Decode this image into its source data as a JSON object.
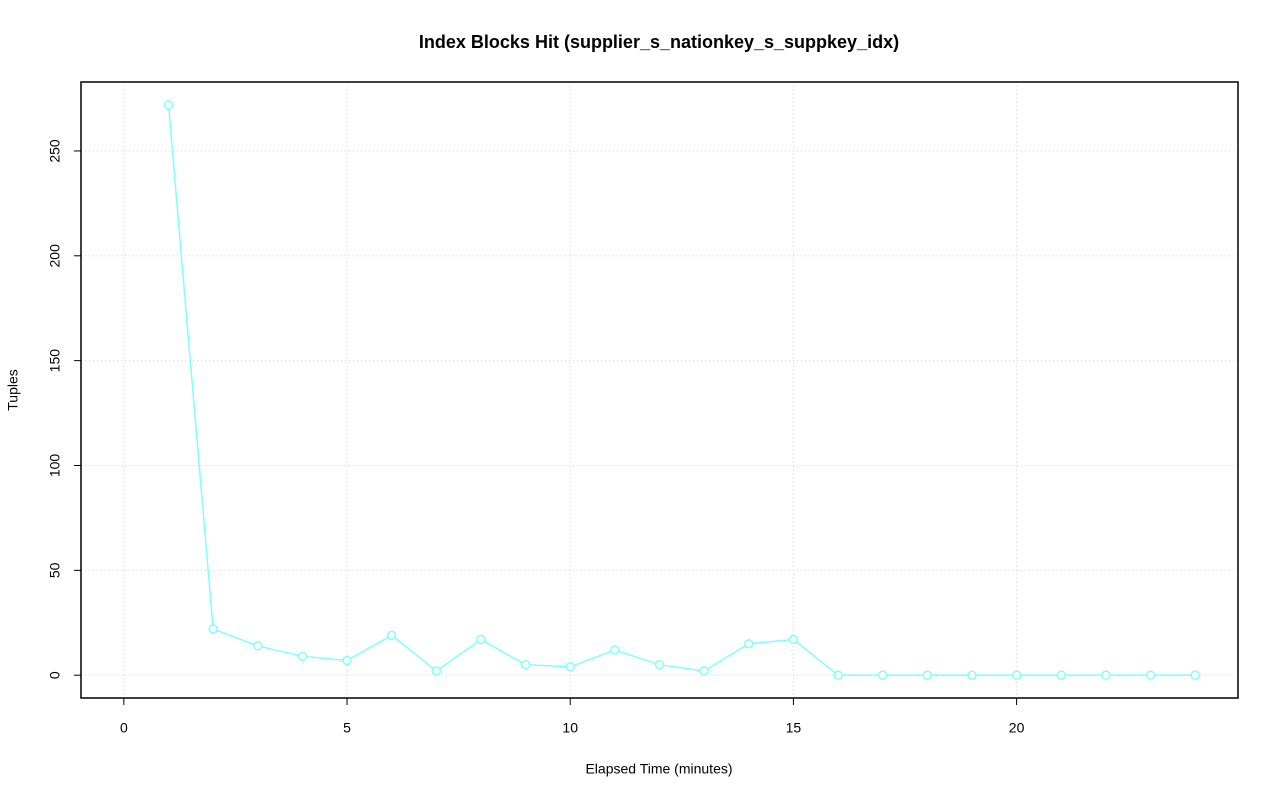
{
  "chart_data": {
    "type": "line",
    "title": "Index Blocks Hit (supplier_s_nationkey_s_suppkey_idx)",
    "x_label": "Elapsed Time (minutes)",
    "y_label": "Tuples",
    "x": [
      1,
      2,
      3,
      4,
      5,
      6,
      7,
      8,
      9,
      10,
      11,
      12,
      13,
      14,
      15,
      16,
      17,
      18,
      19,
      20,
      21,
      22,
      23,
      24
    ],
    "values": [
      272,
      22,
      14,
      9,
      7,
      19,
      2,
      17,
      5,
      4,
      12,
      5,
      2,
      15,
      17,
      0,
      0,
      0,
      0,
      0,
      0,
      0,
      0,
      0
    ],
    "color": "#80ffff",
    "xlim": [
      -0.96,
      24.96
    ],
    "xticks": [
      0,
      5,
      10,
      15,
      20
    ],
    "ylim": [
      -10.88,
      282.88
    ],
    "yticks": [
      0,
      50,
      100,
      150,
      200,
      250
    ],
    "grid": true
  }
}
